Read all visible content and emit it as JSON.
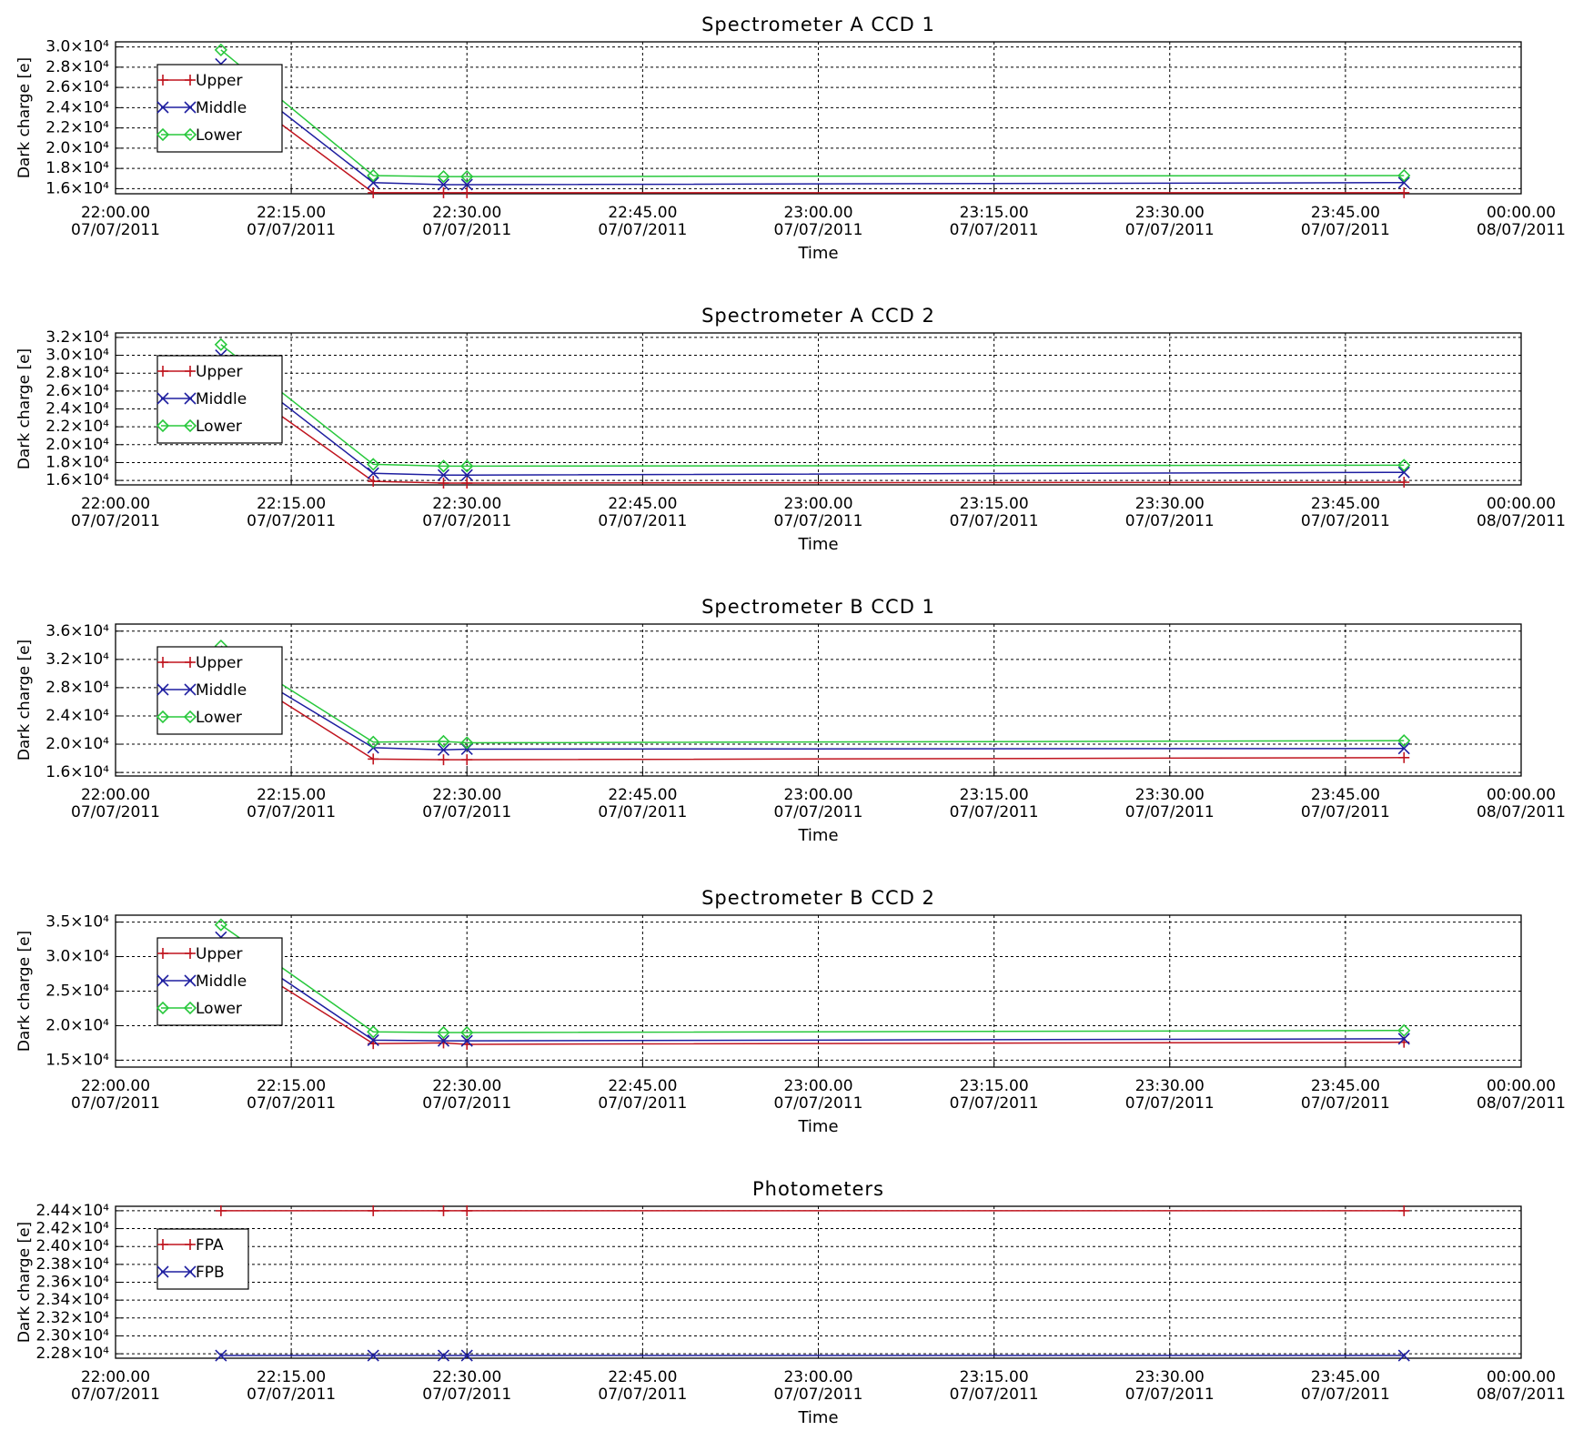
{
  "colors": {
    "upper": "#c0141e",
    "middle": "#1e1ea0",
    "lower": "#28c83c",
    "grid": "#000000"
  },
  "chart_data": [
    {
      "type": "line",
      "title": "Spectrometer A CCD 1",
      "xlabel": "Time",
      "ylabel": "Dark charge [e]",
      "x_ticks": [
        "22:00.00|07/07/2011",
        "22:15.00|07/07/2011",
        "22:30.00|07/07/2011",
        "22:45.00|07/07/2011",
        "23:00.00|07/07/2011",
        "23:15.00|07/07/2011",
        "23:30.00|07/07/2011",
        "23:45.00|07/07/2011",
        "00:00.00|08/07/2011"
      ],
      "x_minutes": [
        0,
        15,
        30,
        45,
        60,
        75,
        90,
        105,
        120
      ],
      "ylim": [
        15500,
        30500
      ],
      "yticks": [
        16000,
        18000,
        20000,
        22000,
        24000,
        26000,
        28000,
        30000
      ],
      "ytick_labels": [
        "1.6×10⁴",
        "1.8×10⁴",
        "2.0×10⁴",
        "2.2×10⁴",
        "2.4×10⁴",
        "2.6×10⁴",
        "2.8×10⁴",
        "3.0×10⁴"
      ],
      "legend": "top-left",
      "grid": true,
      "series": [
        {
          "name": "Upper",
          "marker": "plus",
          "x": [
            9,
            22,
            28,
            30,
            110
          ],
          "y": [
            26800,
            15600,
            15600,
            15600,
            15600
          ]
        },
        {
          "name": "Middle",
          "marker": "x",
          "x": [
            9,
            22,
            28,
            30,
            110
          ],
          "y": [
            28300,
            16600,
            16400,
            16400,
            16600
          ]
        },
        {
          "name": "Lower",
          "marker": "diamond",
          "x": [
            9,
            22,
            28,
            30,
            110
          ],
          "y": [
            29700,
            17300,
            17200,
            17200,
            17300
          ]
        }
      ]
    },
    {
      "type": "line",
      "title": "Spectrometer A CCD 2",
      "xlabel": "Time",
      "ylabel": "Dark charge [e]",
      "x_ticks": [
        "22:00.00|07/07/2011",
        "22:15.00|07/07/2011",
        "22:30.00|07/07/2011",
        "22:45.00|07/07/2011",
        "23:00.00|07/07/2011",
        "23:15.00|07/07/2011",
        "23:30.00|07/07/2011",
        "23:45.00|07/07/2011",
        "00:00.00|08/07/2011"
      ],
      "x_minutes": [
        0,
        15,
        30,
        45,
        60,
        75,
        90,
        105,
        120
      ],
      "ylim": [
        15500,
        32500
      ],
      "yticks": [
        16000,
        18000,
        20000,
        22000,
        24000,
        26000,
        28000,
        30000,
        32000
      ],
      "ytick_labels": [
        "1.6×10⁴",
        "1.8×10⁴",
        "2.0×10⁴",
        "2.2×10⁴",
        "2.4×10⁴",
        "2.6×10⁴",
        "2.8×10⁴",
        "3.0×10⁴",
        "3.2×10⁴"
      ],
      "legend": "top-left",
      "grid": true,
      "series": [
        {
          "name": "Upper",
          "marker": "plus",
          "x": [
            9,
            22,
            28,
            30,
            110
          ],
          "y": [
            28000,
            15900,
            15700,
            15700,
            15800
          ]
        },
        {
          "name": "Middle",
          "marker": "x",
          "x": [
            9,
            22,
            28,
            30,
            110
          ],
          "y": [
            30000,
            16800,
            16600,
            16600,
            16900
          ]
        },
        {
          "name": "Lower",
          "marker": "diamond",
          "x": [
            9,
            22,
            28,
            30,
            110
          ],
          "y": [
            31200,
            17800,
            17600,
            17600,
            17700
          ]
        }
      ]
    },
    {
      "type": "line",
      "title": "Spectrometer B CCD 1",
      "xlabel": "Time",
      "ylabel": "Dark charge [e]",
      "x_ticks": [
        "22:00.00|07/07/2011",
        "22:15.00|07/07/2011",
        "22:30.00|07/07/2011",
        "22:45.00|07/07/2011",
        "23:00.00|07/07/2011",
        "23:15.00|07/07/2011",
        "23:30.00|07/07/2011",
        "23:45.00|07/07/2011",
        "00:00.00|08/07/2011"
      ],
      "x_minutes": [
        0,
        15,
        30,
        45,
        60,
        75,
        90,
        105,
        120
      ],
      "ylim": [
        15500,
        37000
      ],
      "yticks": [
        16000,
        20000,
        24000,
        28000,
        32000,
        36000
      ],
      "ytick_labels": [
        "1.6×10⁴",
        "2.0×10⁴",
        "2.4×10⁴",
        "2.8×10⁴",
        "3.2×10⁴",
        "3.6×10⁴"
      ],
      "legend": "top-left",
      "grid": true,
      "series": [
        {
          "name": "Upper",
          "marker": "plus",
          "x": [
            9,
            22,
            28,
            30,
            110
          ],
          "y": [
            31500,
            17900,
            17800,
            17800,
            18100
          ]
        },
        {
          "name": "Middle",
          "marker": "x",
          "x": [
            9,
            22,
            28,
            30,
            110
          ],
          "y": [
            32500,
            19500,
            19200,
            19300,
            19400
          ]
        },
        {
          "name": "Lower",
          "marker": "diamond",
          "x": [
            9,
            22,
            28,
            30,
            110
          ],
          "y": [
            33900,
            20300,
            20400,
            20200,
            20500
          ]
        }
      ]
    },
    {
      "type": "line",
      "title": "Spectrometer B CCD 2",
      "xlabel": "Time",
      "ylabel": "Dark charge [e]",
      "x_ticks": [
        "22:00.00|07/07/2011",
        "22:15.00|07/07/2011",
        "22:30.00|07/07/2011",
        "22:45.00|07/07/2011",
        "23:00.00|07/07/2011",
        "23:15.00|07/07/2011",
        "23:30.00|07/07/2011",
        "23:45.00|07/07/2011",
        "00:00.00|08/07/2011"
      ],
      "x_minutes": [
        0,
        15,
        30,
        45,
        60,
        75,
        90,
        105,
        120
      ],
      "ylim": [
        14000,
        36000
      ],
      "yticks": [
        15000,
        20000,
        25000,
        30000,
        35000
      ],
      "ytick_labels": [
        "1.5×10⁴",
        "2.0×10⁴",
        "2.5×10⁴",
        "3.0×10⁴",
        "3.5×10⁴"
      ],
      "legend": "top-left",
      "grid": true,
      "series": [
        {
          "name": "Upper",
          "marker": "plus",
          "x": [
            9,
            22,
            28,
            30,
            110
          ],
          "y": [
            31200,
            17400,
            17500,
            17300,
            17600
          ]
        },
        {
          "name": "Middle",
          "marker": "x",
          "x": [
            9,
            22,
            28,
            30,
            110
          ],
          "y": [
            32800,
            17900,
            17800,
            17800,
            18100
          ]
        },
        {
          "name": "Lower",
          "marker": "diamond",
          "x": [
            9,
            22,
            28,
            30,
            110
          ],
          "y": [
            34600,
            19100,
            19000,
            19000,
            19300
          ]
        }
      ]
    },
    {
      "type": "line",
      "title": "Photometers",
      "xlabel": "Time",
      "ylabel": "Dark charge [e]",
      "x_ticks": [
        "22:00.00|07/07/2011",
        "22:15.00|07/07/2011",
        "22:30.00|07/07/2011",
        "22:45.00|07/07/2011",
        "23:00.00|07/07/2011",
        "23:15.00|07/07/2011",
        "23:30.00|07/07/2011",
        "23:45.00|07/07/2011",
        "00:00.00|08/07/2011"
      ],
      "x_minutes": [
        0,
        15,
        30,
        45,
        60,
        75,
        90,
        105,
        120
      ],
      "ylim": [
        22750,
        24450
      ],
      "yticks": [
        22800,
        23000,
        23200,
        23400,
        23600,
        23800,
        24000,
        24200,
        24400
      ],
      "ytick_labels": [
        "2.28×10⁴",
        "2.30×10⁴",
        "2.32×10⁴",
        "2.34×10⁴",
        "2.36×10⁴",
        "2.38×10⁴",
        "2.40×10⁴",
        "2.42×10⁴",
        "2.44×10⁴"
      ],
      "legend": "top-left",
      "grid": true,
      "series": [
        {
          "name": "FPA",
          "marker": "plus",
          "x": [
            9,
            22,
            28,
            30,
            110
          ],
          "y": [
            24400,
            24400,
            24400,
            24400,
            24400
          ]
        },
        {
          "name": "FPB",
          "marker": "x",
          "x": [
            9,
            22,
            28,
            30,
            110
          ],
          "y": [
            22780,
            22780,
            22780,
            22780,
            22780
          ]
        }
      ]
    }
  ]
}
